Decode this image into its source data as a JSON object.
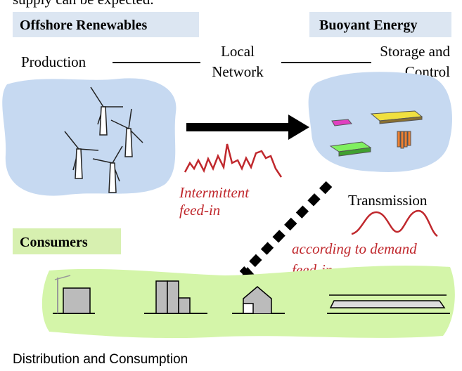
{
  "top_caption": "supply can be expected.",
  "headers": {
    "offshore": "Offshore Renewables",
    "buoyant": "Buoyant Energy",
    "consumers": "Consumers"
  },
  "labels": {
    "production": "Production",
    "local_network": [
      "Local",
      "Network"
    ],
    "storage": [
      "Storage and",
      "Control"
    ],
    "intermittent": [
      "Intermittent",
      "feed-in"
    ],
    "transmission": "Transmission",
    "demand": [
      "according to demand",
      "feed-in"
    ],
    "distribution": "Distribution and Consumption"
  }
}
